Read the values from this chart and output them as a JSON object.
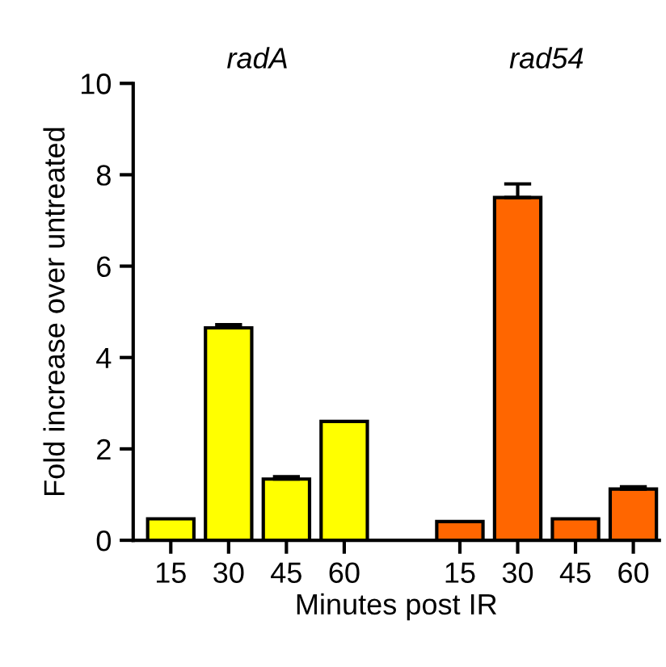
{
  "chart_data": {
    "type": "bar",
    "xlabel": "Minutes post IR",
    "ylabel": "Fold increase over untreated",
    "categories": [
      "15",
      "30",
      "45",
      "60",
      null,
      "15",
      "30",
      "45",
      "60"
    ],
    "values": [
      0.47,
      4.65,
      1.34,
      2.6,
      null,
      0.41,
      7.5,
      0.47,
      1.12
    ],
    "colors": [
      "#ffff00",
      "#ffff00",
      "#ffff00",
      "#ffff00",
      "#ffffff",
      "#ff6600",
      "#ff6600",
      "#ff6600",
      "#ff6600"
    ],
    "errors": [
      null,
      [
        4.65,
        4.72
      ],
      [
        1.34,
        1.39
      ],
      null,
      null,
      null,
      [
        7.5,
        7.8
      ],
      null,
      [
        1.12,
        1.17
      ]
    ],
    "annotations": [
      "radA",
      "rad54"
    ],
    "ylim": [
      0,
      10
    ],
    "yticks": [
      0,
      2,
      4,
      6,
      8,
      10
    ],
    "grid": false,
    "legend": false
  }
}
